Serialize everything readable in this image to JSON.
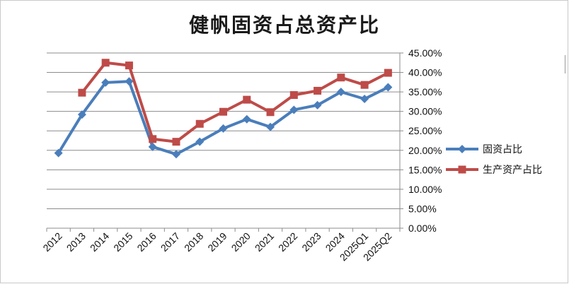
{
  "chart_data": {
    "type": "line",
    "title": "健帆固资占总资产比",
    "categories": [
      "2012",
      "2013",
      "2014",
      "2015",
      "2016",
      "2017",
      "2018",
      "2019",
      "2020",
      "2021",
      "2022",
      "2023",
      "2024",
      "2025Q1",
      "2025Q2"
    ],
    "series": [
      {
        "name": "固资占比",
        "color": "#4a7ebb",
        "marker": "diamond",
        "values": [
          19.3,
          29.2,
          37.4,
          37.7,
          20.9,
          19.0,
          22.2,
          25.6,
          28.0,
          26.0,
          30.4,
          31.6,
          35.0,
          33.2,
          36.2
        ]
      },
      {
        "name": "生产资产占比",
        "color": "#be4b48",
        "marker": "square",
        "values": [
          null,
          34.8,
          42.5,
          41.8,
          22.9,
          22.2,
          26.8,
          29.9,
          33.0,
          29.8,
          34.2,
          35.3,
          38.7,
          36.8,
          39.9
        ]
      }
    ],
    "ylim": [
      0,
      45
    ],
    "yticks": [
      "0.00%",
      "5.00%",
      "10.00%",
      "15.00%",
      "20.00%",
      "25.00%",
      "30.00%",
      "35.00%",
      "40.00%",
      "45.00%"
    ],
    "ytick_values": [
      0,
      5,
      10,
      15,
      20,
      25,
      30,
      35,
      40,
      45
    ],
    "y_axis_side": "right",
    "grid": true,
    "legend_position": "right"
  }
}
